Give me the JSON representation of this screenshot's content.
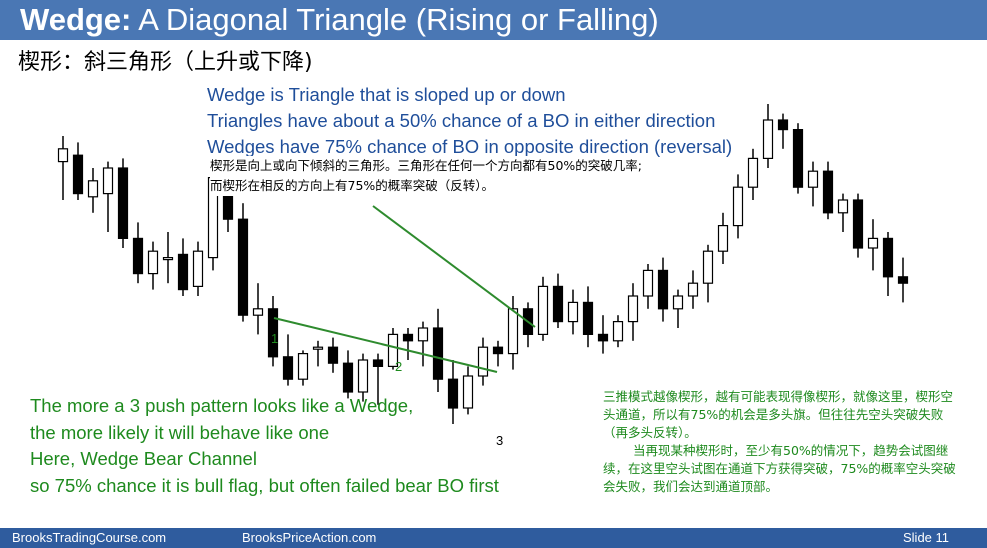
{
  "slide": {
    "title_bold": "Wedge:",
    "title_rest": " A Diagonal Triangle (Rising or Falling)",
    "subtitle_cn": "楔形：斜三角形（上升或下降)"
  },
  "bullets_en": [
    "Wedge is Triangle that is sloped up or down",
    "Triangles have about a 50% chance of a BO in either direction",
    "Wedges have 75% chance of BO in opposite direction (reversal)"
  ],
  "cn_note_top": [
    "楔形是向上或向下倾斜的三角形。三角形在任何一个方向都有50%的突破几率;",
    "而楔形在相反的方向上有75%的概率突破（反转）。"
  ],
  "bottom_en": [
    "The more a 3 push pattern looks like a Wedge,",
    "the more likely it will behave like one",
    "Here, Wedge Bear Channel",
    "so 75% chance it is bull flag, but often failed bear BO first"
  ],
  "cn_note_bottom": [
    "三推模式越像楔形，越有可能表现得像楔形，就像这里，楔形空头通道，所以有75%的机会是多头旗。但往往先空头突破失败（再多头反转）。",
    "当再现某种楔形时，至少有50%的情况下，趋势会试图继续，在这里空头试图在通道下方获得突破，75%的概率空头突破会失败，我们会达到通道顶部。"
  ],
  "push_labels": [
    "1",
    "2",
    "3"
  ],
  "footer": {
    "left": "BrooksTradingCourse.com",
    "center": "BrooksPriceAction.com",
    "slide_label": "Slide",
    "slide_number": "11"
  },
  "colors": {
    "title_bar": "#4a77b4",
    "footer_bar": "#2f5c9e",
    "bullet_text": "#1f4e9a",
    "green_text": "#1e8a1e",
    "wedge_line": "#2e8b2e"
  },
  "chart_data": {
    "type": "candlestick",
    "price_ylim": [
      0,
      100
    ],
    "candles": [
      {
        "o": 82,
        "h": 90,
        "l": 70,
        "c": 86
      },
      {
        "o": 84,
        "h": 88,
        "l": 70,
        "c": 72
      },
      {
        "o": 71,
        "h": 80,
        "l": 66,
        "c": 76
      },
      {
        "o": 72,
        "h": 82,
        "l": 60,
        "c": 80
      },
      {
        "o": 80,
        "h": 83,
        "l": 55,
        "c": 58
      },
      {
        "o": 58,
        "h": 63,
        "l": 44,
        "c": 47
      },
      {
        "o": 47,
        "h": 57,
        "l": 42,
        "c": 54
      },
      {
        "o": 52,
        "h": 60,
        "l": 44,
        "c": 52
      },
      {
        "o": 53,
        "h": 58,
        "l": 40,
        "c": 42
      },
      {
        "o": 43,
        "h": 57,
        "l": 40,
        "c": 54
      },
      {
        "o": 52,
        "h": 79,
        "l": 48,
        "c": 77
      },
      {
        "o": 77,
        "h": 80,
        "l": 60,
        "c": 64
      },
      {
        "o": 64,
        "h": 69,
        "l": 32,
        "c": 34
      },
      {
        "o": 34,
        "h": 44,
        "l": 28,
        "c": 36
      },
      {
        "o": 36,
        "h": 40,
        "l": 18,
        "c": 21
      },
      {
        "o": 21,
        "h": 28,
        "l": 12,
        "c": 14
      },
      {
        "o": 14,
        "h": 23,
        "l": 12,
        "c": 22
      },
      {
        "o": 24,
        "h": 26,
        "l": 18,
        "c": 24
      },
      {
        "o": 24,
        "h": 27,
        "l": 16,
        "c": 19
      },
      {
        "o": 19,
        "h": 23,
        "l": 8,
        "c": 10
      },
      {
        "o": 10,
        "h": 22,
        "l": 7,
        "c": 20
      },
      {
        "o": 20,
        "h": 22,
        "l": 6,
        "c": 18
      },
      {
        "o": 18,
        "h": 30,
        "l": 17,
        "c": 28
      },
      {
        "o": 28,
        "h": 30,
        "l": 20,
        "c": 26
      },
      {
        "o": 26,
        "h": 32,
        "l": 18,
        "c": 30
      },
      {
        "o": 30,
        "h": 36,
        "l": 10,
        "c": 14
      },
      {
        "o": 14,
        "h": 20,
        "l": 0,
        "c": 5
      },
      {
        "o": 5,
        "h": 18,
        "l": 3,
        "c": 15
      },
      {
        "o": 15,
        "h": 27,
        "l": 12,
        "c": 24
      },
      {
        "o": 24,
        "h": 26,
        "l": 18,
        "c": 22
      },
      {
        "o": 22,
        "h": 40,
        "l": 17,
        "c": 36
      },
      {
        "o": 36,
        "h": 38,
        "l": 24,
        "c": 28
      },
      {
        "o": 28,
        "h": 46,
        "l": 26,
        "c": 43
      },
      {
        "o": 43,
        "h": 47,
        "l": 30,
        "c": 32
      },
      {
        "o": 32,
        "h": 42,
        "l": 28,
        "c": 38
      },
      {
        "o": 38,
        "h": 43,
        "l": 24,
        "c": 28
      },
      {
        "o": 28,
        "h": 34,
        "l": 22,
        "c": 26
      },
      {
        "o": 26,
        "h": 34,
        "l": 24,
        "c": 32
      },
      {
        "o": 32,
        "h": 44,
        "l": 26,
        "c": 40
      },
      {
        "o": 40,
        "h": 50,
        "l": 36,
        "c": 48
      },
      {
        "o": 48,
        "h": 52,
        "l": 32,
        "c": 36
      },
      {
        "o": 36,
        "h": 42,
        "l": 30,
        "c": 40
      },
      {
        "o": 40,
        "h": 48,
        "l": 36,
        "c": 44
      },
      {
        "o": 44,
        "h": 56,
        "l": 38,
        "c": 54
      },
      {
        "o": 54,
        "h": 66,
        "l": 50,
        "c": 62
      },
      {
        "o": 62,
        "h": 78,
        "l": 58,
        "c": 74
      },
      {
        "o": 74,
        "h": 86,
        "l": 70,
        "c": 83
      },
      {
        "o": 83,
        "h": 100,
        "l": 80,
        "c": 95
      },
      {
        "o": 95,
        "h": 97,
        "l": 86,
        "c": 92
      },
      {
        "o": 92,
        "h": 94,
        "l": 72,
        "c": 74
      },
      {
        "o": 74,
        "h": 82,
        "l": 68,
        "c": 79
      },
      {
        "o": 79,
        "h": 82,
        "l": 64,
        "c": 66
      },
      {
        "o": 66,
        "h": 72,
        "l": 60,
        "c": 70
      },
      {
        "o": 70,
        "h": 72,
        "l": 52,
        "c": 55
      },
      {
        "o": 55,
        "h": 64,
        "l": 48,
        "c": 58
      },
      {
        "o": 58,
        "h": 60,
        "l": 40,
        "c": 46
      },
      {
        "o": 46,
        "h": 52,
        "l": 38,
        "c": 44
      }
    ]
  }
}
